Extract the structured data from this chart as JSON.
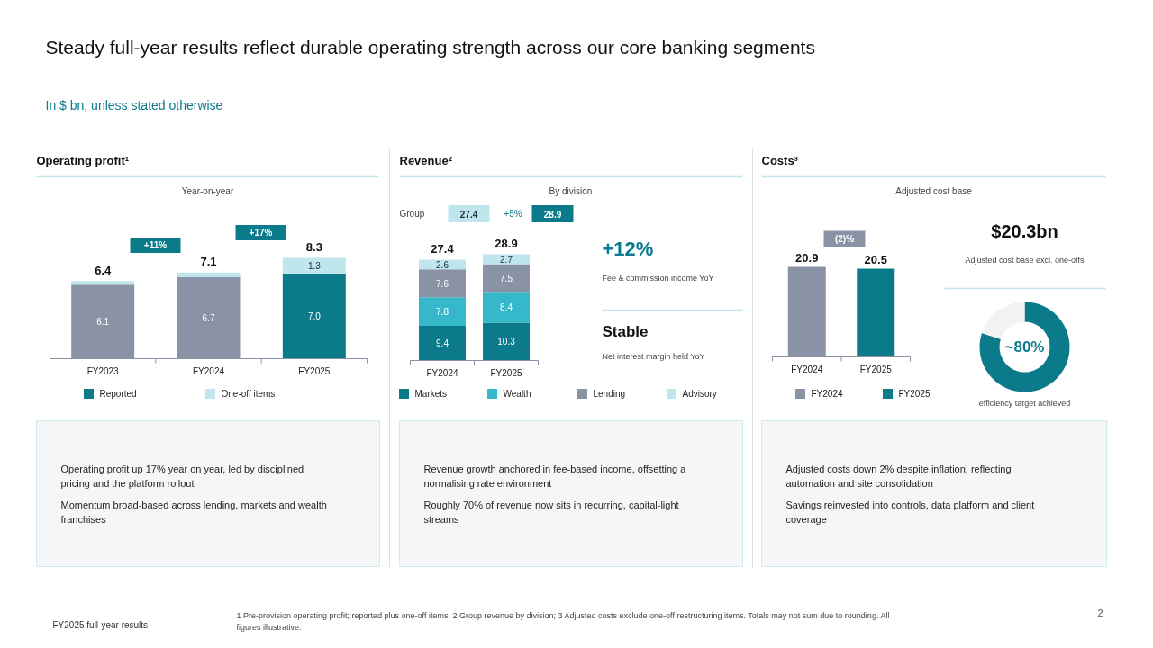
{
  "chart_data": [
    {
      "type": "other",
      "title": "Steady full-year results reflect durable operating strength across our core banking segments",
      "subtitle": "In $ bn, unless stated otherwise",
      "annotations": [
        "FY2025 full-year results",
        "1 Pre-provision operating profit; reported plus one-off items. 2 Group revenue by division; 3 Adjusted costs exclude one-off restructuring items. Totals may not sum due to rounding. All figures illustrative.",
        "2"
      ]
    },
    {
      "type": "bar",
      "title": "Operating profit¹",
      "subtitle": "Year-on-year",
      "categories": [
        "FY2023",
        "FY2024",
        "FY2025"
      ],
      "stacked": true,
      "legend": "bottom",
      "series": [
        {
          "name": "Reported",
          "color": "#0b7a8a",
          "colors": [
            "#8a93a6",
            "#8a93a6",
            "#0b7a8a"
          ],
          "values": [
            6.1,
            6.7,
            7.0
          ],
          "value_labels": [
            "6.1",
            "6.7",
            "7.0"
          ]
        },
        {
          "name": "One-off items",
          "color": "#bfe6ec",
          "values": [
            0.3,
            0.4,
            1.3
          ],
          "value_labels": [
            null,
            null,
            "1.3"
          ]
        }
      ],
      "totals": [
        "6.4",
        "7.1",
        "8.3"
      ],
      "annotations": [
        "+11%",
        "+17%",
        "Operating profit up 17% year on year, led by disciplined pricing and the platform rollout",
        "Momentum broad-based across lending, markets and wealth franchises"
      ]
    },
    {
      "type": "bar",
      "title": "Revenue²",
      "categories": [
        "FY2024",
        "FY2025"
      ],
      "stacked": true,
      "legend": "bottom",
      "data_labels": true,
      "series": [
        {
          "name": "Markets",
          "color": "#0b7a8a",
          "values": [
            9.4,
            10.3
          ]
        },
        {
          "name": "Wealth",
          "color": "#35b8c9",
          "values": [
            7.8,
            8.4
          ]
        },
        {
          "name": "Lending",
          "color": "#8a93a6",
          "values": [
            7.6,
            7.5
          ]
        },
        {
          "name": "Advisory",
          "color": "#bfe6ec",
          "values": [
            2.6,
            2.7
          ]
        }
      ],
      "totals": [
        "27.4",
        "28.9"
      ],
      "annotations": [
        "By division",
        "Group",
        "27.4",
        "+5%",
        "28.9",
        "+12%",
        "Fee & commission income YoY",
        "Stable",
        "Net interest margin held YoY",
        "Revenue growth anchored in fee-based income, offsetting a normalising rate environment",
        "Roughly 70% of revenue now sits in recurring, capital-light streams"
      ]
    },
    {
      "type": "bar",
      "title": "Costs³",
      "categories": [
        "FY2024",
        "FY2025"
      ],
      "stacked": true,
      "legend": "bottom",
      "data_labels": true,
      "series": [
        {
          "name": "FY2024",
          "color": "#8a93a6",
          "values": [
            20.9,
            null
          ]
        },
        {
          "name": "FY2025",
          "color": "#0b7a8a",
          "values": [
            null,
            20.5
          ]
        }
      ],
      "annotations": [
        "Adjusted cost base",
        "(2)%",
        "$20.3bn",
        "Adjusted cost base excl. one-offs",
        "Adjusted costs down 2% despite inflation, reflecting automation and site consolidation",
        "Savings reinvested into controls, data platform and client coverage"
      ]
    },
    {
      "type": "donut",
      "categories": [
        null,
        null
      ],
      "values": [
        80,
        20
      ],
      "colors": [
        "#0b7a8a",
        "#f2f2f2"
      ],
      "annotations": [
        "~80%",
        "efficiency target achieved"
      ]
    }
  ]
}
